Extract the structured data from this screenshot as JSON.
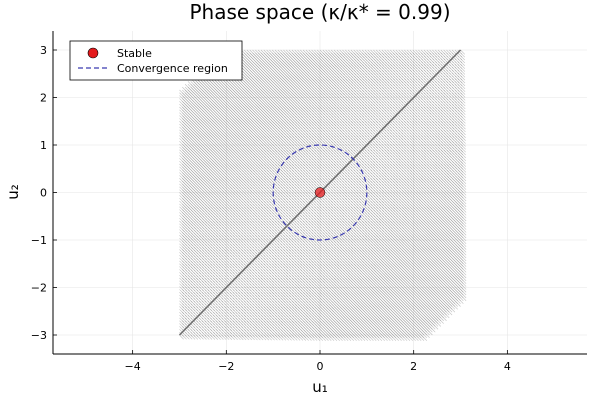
{
  "chart_data": {
    "type": "scatter",
    "title": "Phase space (κ/κ* = 0.99)",
    "xlabel": "u₁",
    "ylabel": "u₂",
    "xlim": [
      -5.7,
      5.7
    ],
    "ylim": [
      -3.4,
      3.4
    ],
    "xticks": [
      -4,
      -2,
      0,
      2,
      4
    ],
    "yticks": [
      -3,
      -2,
      -1,
      0,
      1,
      2,
      3
    ],
    "xtick_labels": [
      "−4",
      "−2",
      "0",
      "2",
      "4"
    ],
    "ytick_labels": [
      "−3",
      "−2",
      "−1",
      "0",
      "1",
      "2",
      "3"
    ],
    "grid": true,
    "legend_position": "top-left",
    "vector_field": {
      "x_range": [
        -3,
        3
      ],
      "y_range": [
        -3,
        3
      ],
      "direction": [
        0.5,
        -0.5
      ],
      "color": "#808080"
    },
    "series": [
      {
        "name": "Stable",
        "kind": "point",
        "x": [
          0
        ],
        "y": [
          0
        ],
        "color": "#e41a1c"
      },
      {
        "name": "Convergence region",
        "kind": "circle",
        "center": [
          0,
          0
        ],
        "radius": 1,
        "color": "#3b3bb0",
        "style": "dashed"
      }
    ],
    "diagonal_line": {
      "x": [
        -3,
        3
      ],
      "y": [
        -3,
        3
      ],
      "color": "#707070"
    }
  }
}
